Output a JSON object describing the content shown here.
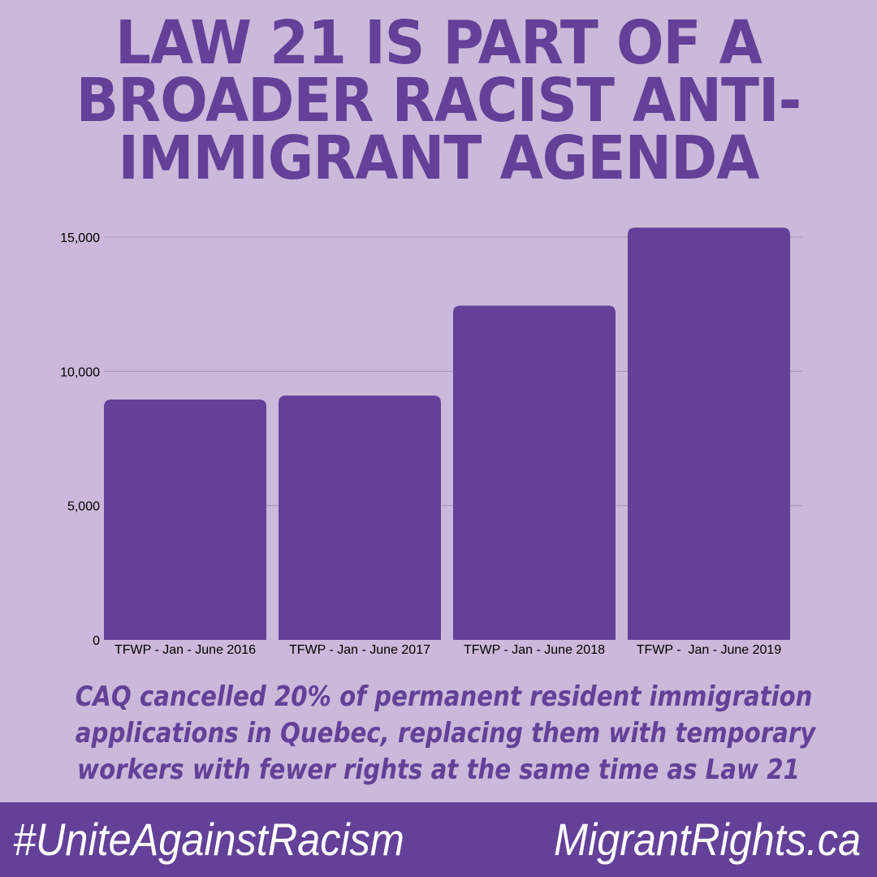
{
  "headline": {
    "lines": [
      "LAW 21 IS PART OF A",
      "BROADER RACIST ANTI-",
      "IMMIGRANT AGENDA"
    ]
  },
  "chart_data": {
    "type": "bar",
    "categories": [
      "TFWP - Jan - June 2016",
      "TFWP - Jan - June 2017",
      "TFWP - Jan - June 2018",
      "TFWP -  Jan - June 2019"
    ],
    "values": [
      8950,
      9100,
      12450,
      15350
    ],
    "ylim": [
      0,
      15500
    ],
    "yticks": [
      0,
      5000,
      10000,
      15000
    ],
    "ytick_labels": [
      "0",
      "5,000",
      "10,000",
      "15,000"
    ],
    "grid": true,
    "bar_color": "#634198",
    "title": "",
    "xlabel": "",
    "ylabel": ""
  },
  "caption": {
    "lines": [
      "CAQ cancelled 20% of permanent resident immigration",
      "applications in Quebec, replacing them with temporary",
      "workers with fewer rights at the same time as Law 21"
    ]
  },
  "footer": {
    "hashtag": "#UniteAgainstRacism",
    "site": "MigrantRights.ca"
  },
  "colors": {
    "background": "#cbb8da",
    "accent": "#634198"
  }
}
